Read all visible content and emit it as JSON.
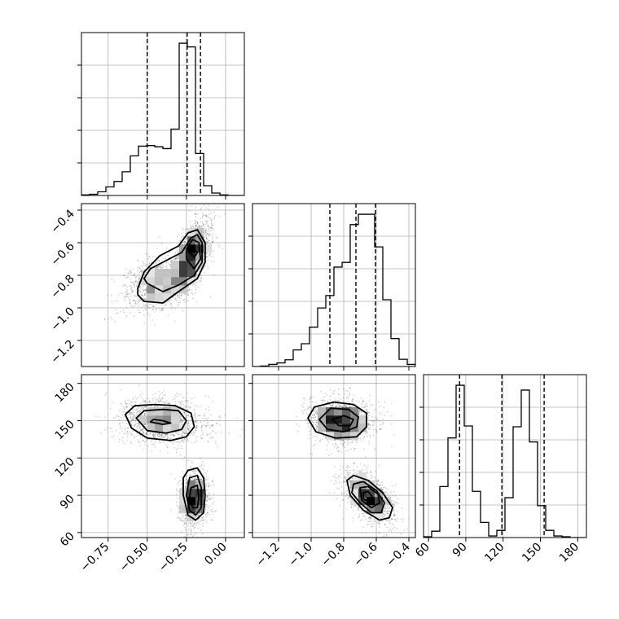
{
  "chart_data": {
    "type": "corner",
    "grid": true,
    "colors": {
      "hist": "#000000",
      "quantile": "#000000",
      "grid": "#b0b0b0",
      "scatter": "#444444",
      "frame": "#000000"
    },
    "parameters": [
      {
        "index": 0,
        "range": [
          -0.92,
          0.12
        ],
        "ticks": [
          -0.75,
          -0.5,
          -0.25,
          0.0
        ],
        "tick_labels": [
          "−0.75",
          "−0.50",
          "−0.25",
          "0.00"
        ],
        "quantiles": [
          -0.5,
          -0.245,
          -0.16
        ],
        "hist_bin_edges": [
          -0.92,
          -0.868,
          -0.816,
          -0.764,
          -0.712,
          -0.66,
          -0.608,
          -0.556,
          -0.504,
          -0.452,
          -0.4,
          -0.348,
          -0.296,
          -0.244,
          -0.192,
          -0.14,
          -0.088,
          -0.036,
          0.016,
          0.068,
          0.12
        ],
        "hist_counts": [
          1,
          2,
          6,
          14,
          23,
          39,
          65,
          81,
          82,
          80,
          77,
          109,
          250,
          244,
          69,
          16,
          4,
          1,
          0,
          0
        ]
      },
      {
        "index": 1,
        "range": [
          -1.36,
          -0.36
        ],
        "ticks": [
          -1.2,
          -1.0,
          -0.8,
          -0.6,
          -0.4
        ],
        "tick_labels": [
          "−1.2",
          "−1.0",
          "−0.8",
          "−0.6",
          "−0.4"
        ],
        "quantiles": [
          -0.885,
          -0.725,
          -0.605
        ],
        "hist_bin_edges": [
          -1.36,
          -1.31,
          -1.26,
          -1.21,
          -1.16,
          -1.11,
          -1.06,
          -1.01,
          -0.96,
          -0.91,
          -0.86,
          -0.81,
          -0.76,
          -0.71,
          -0.66,
          -0.61,
          -0.56,
          -0.51,
          -0.46,
          -0.41,
          -0.36
        ],
        "hist_counts": [
          0,
          1,
          4,
          7,
          13,
          32,
          44,
          76,
          113,
          137,
          192,
          201,
          274,
          294,
          294,
          231,
          129,
          54,
          14,
          4
        ]
      },
      {
        "index": 2,
        "range": [
          56,
          187
        ],
        "ticks": [
          60,
          90,
          120,
          150,
          180
        ],
        "tick_labels": [
          "60",
          "90",
          "120",
          "150",
          "180"
        ],
        "quantiles": [
          85,
          119,
          153
        ],
        "hist_bin_edges": [
          56,
          62.55,
          69.1,
          75.65,
          82.2,
          88.75,
          95.3,
          101.85,
          108.4,
          114.95,
          121.5,
          128.05,
          134.6,
          141.15,
          147.7,
          154.25,
          160.8,
          167.35,
          173.9,
          180.45,
          187
        ],
        "hist_counts": [
          1,
          8,
          64,
          125,
          191,
          140,
          58,
          19,
          2,
          9,
          50,
          139,
          185,
          120,
          40,
          9,
          2,
          1,
          0,
          0
        ]
      }
    ],
    "pairs": [
      {
        "x_param": 0,
        "y_param": 1,
        "seed": 11,
        "clusters": [
          {
            "weight": 0.45,
            "mean": [
              -0.42,
              -0.85
            ],
            "sd": [
              0.11,
              0.085
            ],
            "rho": 0.35
          },
          {
            "weight": 0.55,
            "mean": [
              -0.21,
              -0.67
            ],
            "sd": [
              0.06,
              0.11
            ],
            "rho": 0.55
          }
        ],
        "contours": [
          [
            [
              -0.56,
              -0.92
            ],
            [
              -0.52,
              -0.96
            ],
            [
              -0.4,
              -0.97
            ],
            [
              -0.3,
              -0.9
            ],
            [
              -0.18,
              -0.82
            ],
            [
              -0.13,
              -0.72
            ],
            [
              -0.13,
              -0.6
            ],
            [
              -0.18,
              -0.52
            ],
            [
              -0.24,
              -0.54
            ],
            [
              -0.3,
              -0.62
            ],
            [
              -0.42,
              -0.68
            ],
            [
              -0.52,
              -0.78
            ],
            [
              -0.56,
              -0.88
            ]
          ],
          [
            [
              -0.5,
              -0.85
            ],
            [
              -0.4,
              -0.9
            ],
            [
              -0.3,
              -0.86
            ],
            [
              -0.2,
              -0.8
            ],
            [
              -0.15,
              -0.72
            ],
            [
              -0.15,
              -0.6
            ],
            [
              -0.18,
              -0.55
            ],
            [
              -0.22,
              -0.57
            ],
            [
              -0.28,
              -0.66
            ],
            [
              -0.38,
              -0.71
            ],
            [
              -0.48,
              -0.76
            ],
            [
              -0.52,
              -0.82
            ]
          ],
          [
            [
              -0.25,
              -0.7
            ],
            [
              -0.2,
              -0.76
            ],
            [
              -0.16,
              -0.7
            ],
            [
              -0.17,
              -0.6
            ],
            [
              -0.21,
              -0.58
            ],
            [
              -0.25,
              -0.64
            ]
          ],
          [
            [
              -0.23,
              -0.66
            ],
            [
              -0.2,
              -0.69
            ],
            [
              -0.18,
              -0.66
            ],
            [
              -0.21,
              -0.64
            ]
          ]
        ]
      },
      {
        "x_param": 0,
        "y_param": 2,
        "seed": 29,
        "clusters": [
          {
            "weight": 0.55,
            "mean": [
              -0.4,
              150
            ],
            "sd": [
              0.14,
              9.0
            ],
            "rho": -0.1
          },
          {
            "weight": 0.45,
            "mean": [
              -0.2,
              88
            ],
            "sd": [
              0.045,
              11.0
            ],
            "rho": 0.05
          }
        ],
        "contours": [
          [
            [
              -0.64,
              155
            ],
            [
              -0.6,
              144
            ],
            [
              -0.5,
              136
            ],
            [
              -0.35,
              134
            ],
            [
              -0.25,
              137
            ],
            [
              -0.2,
              145
            ],
            [
              -0.22,
              156
            ],
            [
              -0.32,
              162
            ],
            [
              -0.45,
              163
            ],
            [
              -0.58,
              162
            ]
          ],
          [
            [
              -0.57,
              152
            ],
            [
              -0.5,
              142
            ],
            [
              -0.38,
              140
            ],
            [
              -0.28,
              143
            ],
            [
              -0.25,
              150
            ],
            [
              -0.3,
              158
            ],
            [
              -0.4,
              159
            ],
            [
              -0.52,
              158
            ]
          ],
          [
            [
              -0.48,
              149
            ],
            [
              -0.4,
              147
            ],
            [
              -0.35,
              148
            ],
            [
              -0.4,
              150
            ],
            [
              -0.46,
              151
            ]
          ],
          [
            [
              -0.24,
              110
            ],
            [
              -0.18,
              112
            ],
            [
              -0.14,
              104
            ],
            [
              -0.13,
              90
            ],
            [
              -0.14,
              76
            ],
            [
              -0.19,
              70
            ],
            [
              -0.24,
              74
            ],
            [
              -0.27,
              90
            ],
            [
              -0.27,
              104
            ]
          ],
          [
            [
              -0.23,
              104
            ],
            [
              -0.18,
              106
            ],
            [
              -0.155,
              96
            ],
            [
              -0.155,
              80
            ],
            [
              -0.19,
              74
            ],
            [
              -0.23,
              78
            ],
            [
              -0.25,
              90
            ]
          ],
          [
            [
              -0.22,
              96
            ],
            [
              -0.18,
              98
            ],
            [
              -0.17,
              88
            ],
            [
              -0.18,
              80
            ],
            [
              -0.21,
              80
            ],
            [
              -0.23,
              88
            ]
          ]
        ]
      },
      {
        "x_param": 1,
        "y_param": 2,
        "seed": 47,
        "clusters": [
          {
            "weight": 0.55,
            "mean": [
              -0.82,
              150
            ],
            "sd": [
              0.1,
              9.0
            ],
            "rho": -0.1
          },
          {
            "weight": 0.45,
            "mean": [
              -0.64,
              88
            ],
            "sd": [
              0.08,
              11.0
            ],
            "rho": -0.55
          }
        ],
        "contours": [
          [
            [
              -1.02,
              152
            ],
            [
              -0.97,
              141
            ],
            [
              -0.85,
              136
            ],
            [
              -0.72,
              137
            ],
            [
              -0.66,
              145
            ],
            [
              -0.66,
              156
            ],
            [
              -0.74,
              163
            ],
            [
              -0.86,
              165
            ],
            [
              -0.98,
              161
            ]
          ],
          [
            [
              -0.95,
              151
            ],
            [
              -0.9,
              143
            ],
            [
              -0.8,
              141
            ],
            [
              -0.72,
              145
            ],
            [
              -0.71,
              153
            ],
            [
              -0.77,
              159
            ],
            [
              -0.88,
              160
            ]
          ],
          [
            [
              -0.87,
              151
            ],
            [
              -0.83,
              146
            ],
            [
              -0.76,
              146
            ],
            [
              -0.74,
              151
            ],
            [
              -0.8,
              154
            ]
          ],
          [
            [
              -0.78,
              102
            ],
            [
              -0.74,
              106
            ],
            [
              -0.65,
              102
            ],
            [
              -0.56,
              92
            ],
            [
              -0.5,
              80
            ],
            [
              -0.52,
              72
            ],
            [
              -0.58,
              70
            ],
            [
              -0.68,
              78
            ],
            [
              -0.76,
              90
            ]
          ],
          [
            [
              -0.74,
              99
            ],
            [
              -0.68,
              101
            ],
            [
              -0.6,
              94
            ],
            [
              -0.55,
              84
            ],
            [
              -0.57,
              76
            ],
            [
              -0.63,
              76
            ],
            [
              -0.7,
              84
            ],
            [
              -0.75,
              92
            ]
          ],
          [
            [
              -0.7,
              96
            ],
            [
              -0.65,
              97
            ],
            [
              -0.59,
              91
            ],
            [
              -0.58,
              84
            ],
            [
              -0.63,
              80
            ],
            [
              -0.69,
              86
            ]
          ],
          [
            [
              -0.68,
              92
            ],
            [
              -0.65,
              93
            ],
            [
              -0.62,
              88
            ],
            [
              -0.65,
              85
            ],
            [
              -0.68,
              87
            ]
          ]
        ]
      }
    ]
  }
}
